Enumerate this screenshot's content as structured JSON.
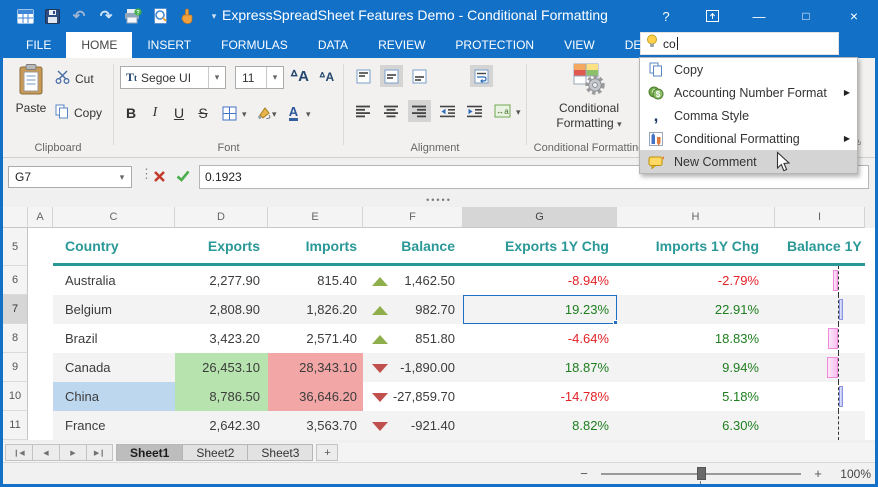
{
  "window": {
    "title": "ExpressSpreadSheet Features Demo - Conditional Formatting",
    "controls": {
      "help": "?",
      "minimize": "—",
      "maximize": "□",
      "close": "×"
    }
  },
  "qat": {
    "icons": [
      "app-grid",
      "save",
      "undo",
      "redo",
      "print-preview",
      "find",
      "touch-mode",
      "customize-caret"
    ]
  },
  "ribbon_tabs": {
    "items": [
      "FILE",
      "HOME",
      "INSERT",
      "FORMULAS",
      "DATA",
      "REVIEW",
      "PROTECTION",
      "VIEW",
      "DEMO"
    ],
    "active": "HOME"
  },
  "search": {
    "value": "co"
  },
  "ribbon": {
    "clipboard": {
      "label": "Clipboard",
      "paste": "Paste",
      "cut": "Cut",
      "copy": "Copy"
    },
    "font": {
      "label": "Font",
      "font_name": "Segoe UI",
      "font_size": "11",
      "format_buttons": [
        {
          "name": "bold",
          "glyph": "B"
        },
        {
          "name": "italic",
          "glyph": "I"
        },
        {
          "name": "underline",
          "glyph": "U"
        },
        {
          "name": "strikethrough",
          "glyph": "S"
        }
      ]
    },
    "alignment": {
      "label": "Alignment"
    },
    "conditional_formatting": {
      "label": "Conditional Formatting",
      "button_line1": "Conditional",
      "button_line2": "Formatting"
    }
  },
  "search_menu": {
    "items": [
      {
        "label": "Copy",
        "icon": "copy",
        "submenu": false,
        "highlighted": false
      },
      {
        "label": "Accounting Number Format",
        "icon": "accounting",
        "submenu": true,
        "highlighted": false
      },
      {
        "label": "Comma Style",
        "icon": "comma",
        "submenu": false,
        "highlighted": false
      },
      {
        "label": "Conditional Formatting",
        "icon": "conditional-formatting",
        "submenu": true,
        "highlighted": false
      },
      {
        "label": "New Comment",
        "icon": "new-comment",
        "submenu": false,
        "highlighted": true
      }
    ]
  },
  "formula_bar": {
    "name_box": "G7",
    "value": "0.1923"
  },
  "grid": {
    "column_letters": [
      "A",
      "C",
      "D",
      "E",
      "F",
      "G",
      "H",
      "I"
    ],
    "selected_column": "G",
    "selected_row": "7",
    "header_row": {
      "num": "5",
      "cells": [
        "Country",
        "Exports",
        "Imports",
        "Balance",
        "Exports 1Y Chg",
        "Imports 1Y Chg",
        "Balance 1Y"
      ]
    },
    "rows": [
      {
        "num": "6",
        "country": "Australia",
        "exports": "2,277.90",
        "imports": "815.40",
        "trend": "up",
        "balance": "1,462.50",
        "exports_chg": "-8.94%",
        "imports_chg": "-2.79%",
        "bar": {
          "side": "negative",
          "width": 5
        }
      },
      {
        "num": "7",
        "country": "Belgium",
        "exports": "2,808.90",
        "imports": "1,826.20",
        "trend": "up",
        "balance": "982.70",
        "exports_chg": "19.23%",
        "imports_chg": "22.91%",
        "bar": {
          "side": "positive",
          "width": 4
        },
        "selected": true
      },
      {
        "num": "8",
        "country": "Brazil",
        "exports": "3,423.20",
        "imports": "2,571.40",
        "trend": "up",
        "balance": "851.80",
        "exports_chg": "-4.64%",
        "imports_chg": "18.83%",
        "bar": {
          "side": "negative",
          "width": 10
        }
      },
      {
        "num": "9",
        "country": "Canada",
        "exports": "26,453.10",
        "imports": "28,343.10",
        "trend": "down",
        "balance": "-1,890.00",
        "exports_chg": "18.87%",
        "imports_chg": "9.94%",
        "bar": {
          "side": "negative",
          "width": 11
        },
        "exports_highlight": true,
        "imports_highlight": true
      },
      {
        "num": "10",
        "country": "China",
        "exports": "8,786.50",
        "imports": "36,646.20",
        "trend": "down",
        "balance": "-27,859.70",
        "exports_chg": "-14.78%",
        "imports_chg": "5.18%",
        "bar": {
          "side": "positive",
          "width": 4
        },
        "exports_highlight": true,
        "imports_highlight": true,
        "country_highlight": true
      },
      {
        "num": "11",
        "country": "France",
        "exports": "2,642.30",
        "imports": "3,563.70",
        "trend": "down",
        "balance": "-921.40",
        "exports_chg": "8.82%",
        "imports_chg": "6.30%",
        "bar": null
      }
    ]
  },
  "sheet_bar": {
    "tabs": [
      "Sheet1",
      "Sheet2",
      "Sheet3"
    ],
    "active": "Sheet1",
    "add_button": "+"
  },
  "status_bar": {
    "zoom_out": "−",
    "zoom_in": "+",
    "zoom_level": "100%"
  },
  "colors": {
    "blue": "#1270C7",
    "teal": "#2B9898",
    "greencell": "#B7E3AE",
    "redcell": "#F2A6A6",
    "bluecell": "#BDD7EE",
    "pos": "#1E7E1E",
    "neg": "#E32227",
    "sel": "#1F6FC5",
    "triup": "#8FAF4C",
    "tridown": "#C0504D",
    "barpink": "#F08AD8",
    "barblue": "#8A94E0"
  }
}
